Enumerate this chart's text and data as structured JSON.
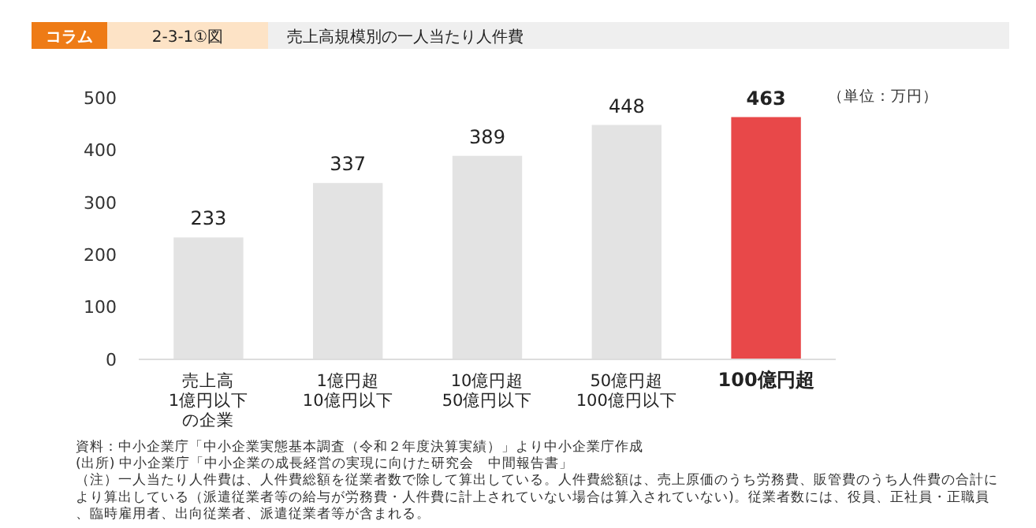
{
  "chart_data": {
    "type": "bar",
    "title": "売上高規模別の一人当たり人件費",
    "categories": [
      "売上高1億円以下の企業",
      "1億円超10億円以下",
      "10億円超50億円以下",
      "50億円超100億円以下",
      "100億円超"
    ],
    "values": [
      233,
      337,
      389,
      448,
      463
    ],
    "colors": [
      "#e3e3e3",
      "#e3e3e3",
      "#e3e3e3",
      "#e3e3e3",
      "#e84849"
    ],
    "data_labels": true,
    "ylim": [
      0,
      500
    ],
    "yticks": [
      0,
      100,
      200,
      300,
      400,
      500
    ],
    "grid": false,
    "annotations": [
      "コラム",
      "2-3-1①図",
      "（単位：万円）",
      "資料：中小企業庁「中小企業実態基本調査（令和２年度決算実績）」より中小企業庁作成",
      "(出所) 中小企業庁「中小企業の成長経営の実現に向けた研究会　中間報告書」",
      "（注）一人当たり人件費は、人件費総額を従業者数で除して算出している。人件費総額は、売上原価のうち労務費、販管費のうち人件費の合計により算出している（派遣従業者等の給与が労務費・人件費に計上されていない場合は算入されていない)。従業者数には、役員、正社員・正職員、臨時雇用者、出向従業者、派遣従業者等が含まれる。"
    ]
  }
}
